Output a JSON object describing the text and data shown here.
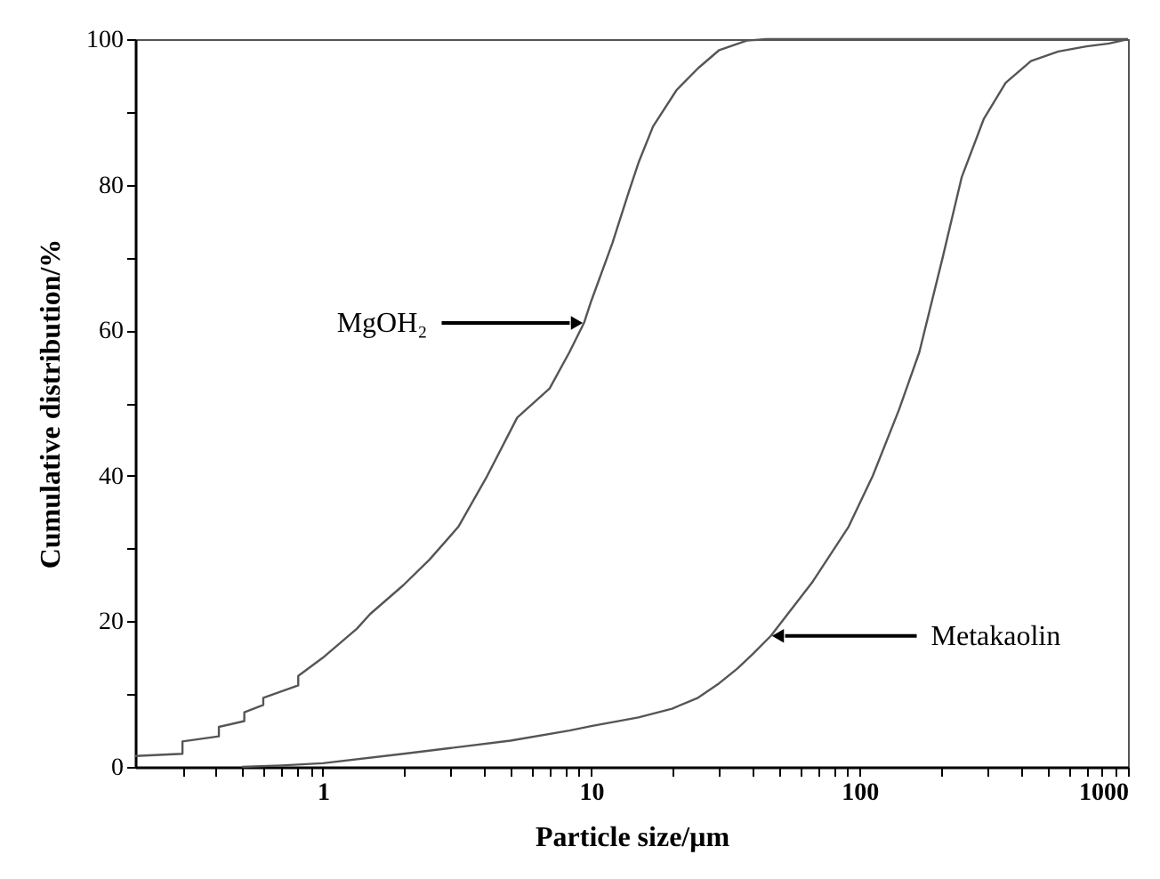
{
  "chart_data": {
    "type": "line",
    "xlabel": "Particle size/μm",
    "ylabel": "Cumulative distribution/%",
    "log": "x",
    "xlim": [
      0.2,
      1000
    ],
    "ylim": [
      0,
      100
    ],
    "xticks": [
      {
        "value": 0.3,
        "label": null
      },
      {
        "value": 0.4,
        "label": null
      },
      {
        "value": 0.5,
        "label": null
      },
      {
        "value": 0.6,
        "label": null
      },
      {
        "value": 0.7,
        "label": null
      },
      {
        "value": 0.8,
        "label": null
      },
      {
        "value": 0.9,
        "label": null
      },
      1,
      {
        "value": 2,
        "label": null
      },
      {
        "value": 3,
        "label": null
      },
      {
        "value": 4,
        "label": null
      },
      {
        "value": 5,
        "label": null
      },
      {
        "value": 6,
        "label": null
      },
      {
        "value": 7,
        "label": null
      },
      {
        "value": 8,
        "label": null
      },
      {
        "value": 9,
        "label": null
      },
      10,
      {
        "value": 20,
        "label": null
      },
      {
        "value": 30,
        "label": null
      },
      {
        "value": 40,
        "label": null
      },
      {
        "value": 50,
        "label": null
      },
      {
        "value": 60,
        "label": null
      },
      {
        "value": 70,
        "label": null
      },
      {
        "value": 80,
        "label": null
      },
      {
        "value": 90,
        "label": null
      },
      100,
      {
        "value": 200,
        "label": null
      },
      {
        "value": 300,
        "label": null
      },
      {
        "value": 400,
        "label": null
      },
      {
        "value": 500,
        "label": null
      },
      {
        "value": 600,
        "label": null
      },
      {
        "value": 700,
        "label": null
      },
      {
        "value": 800,
        "label": null
      },
      {
        "value": 900,
        "label": null
      },
      1000
    ],
    "yticks": [
      0,
      {
        "value": 10,
        "label": null
      },
      20,
      {
        "value": 30,
        "label": null
      },
      40,
      {
        "value": 50,
        "label": null
      },
      60,
      {
        "value": 70,
        "label": null
      },
      80,
      {
        "value": 90,
        "label": null
      },
      100
    ],
    "grid": false,
    "marker": "none",
    "line_style": "solid",
    "series": [
      {
        "color": "#555555",
        "x": [
          0.2,
          0.3,
          0.3,
          0.41,
          0.41,
          0.51,
          0.51,
          0.6,
          0.6,
          0.81,
          0.81,
          1,
          1.34,
          1.5,
          2,
          2.5,
          3.2,
          4.1,
          5.3,
          7,
          8.3,
          9.4,
          10,
          12,
          13.8,
          15,
          17,
          20.8,
          25,
          30,
          38,
          45,
          1000
        ],
        "values": [
          1.5,
          1.8,
          3.5,
          4.2,
          5.5,
          6.3,
          7.5,
          8.5,
          9.5,
          11.2,
          12.5,
          15,
          19,
          21,
          25,
          28.5,
          33,
          40,
          48,
          52,
          57,
          61,
          64,
          72,
          79,
          83,
          88,
          93,
          96,
          98.5,
          99.8,
          100,
          100
        ]
      },
      {
        "color": "#555555",
        "x": [
          0.5,
          0.7,
          1,
          2,
          3,
          5,
          8.3,
          10,
          15,
          20,
          25,
          30,
          35,
          40,
          46.7,
          67,
          91,
          112,
          140,
          167,
          204,
          240,
          290,
          350,
          435,
          550,
          700,
          850,
          1000
        ],
        "values": [
          0,
          0.2,
          0.5,
          1.8,
          2.6,
          3.6,
          5,
          5.6,
          6.8,
          8,
          9.5,
          11.5,
          13.5,
          15.5,
          18,
          25.5,
          33,
          40,
          49,
          57,
          70,
          81,
          89,
          94,
          97,
          98.3,
          99,
          99.4,
          100
        ]
      }
    ],
    "annotations": [
      {
        "text": "MgOH₂",
        "x": 9.4,
        "y": 61
      },
      {
        "text": "Metakaolin",
        "x": 46.7,
        "y": 18
      }
    ]
  }
}
